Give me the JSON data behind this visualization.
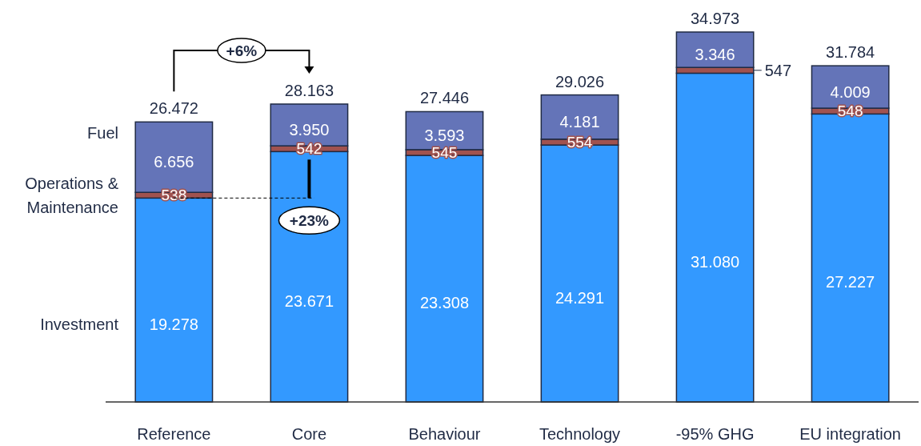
{
  "chart_data": {
    "type": "bar",
    "stacked": true,
    "categories": [
      "Reference",
      "Core",
      "Behaviour",
      "Technology",
      "-95% GHG",
      "EU integration"
    ],
    "series": [
      {
        "name": "Investment",
        "color": "#3399ff",
        "values": [
          19278,
          23671,
          23308,
          24291,
          31080,
          27227
        ],
        "value_labels": [
          "19.278",
          "23.671",
          "23.308",
          "24.291",
          "31.080",
          "27.227"
        ]
      },
      {
        "name": "Operations & Maintenance",
        "color": "#a0524f",
        "values": [
          538,
          542,
          545,
          554,
          547,
          548
        ],
        "value_labels": [
          "538",
          "542",
          "545",
          "554",
          "547",
          "548"
        ]
      },
      {
        "name": "Fuel",
        "color": "#6474b8",
        "values": [
          6656,
          3950,
          3593,
          4181,
          3346,
          4009
        ],
        "value_labels": [
          "6.656",
          "3.950",
          "3.593",
          "4.181",
          "3.346",
          "4.009"
        ]
      }
    ],
    "totals": [
      "26.472",
      "28.163",
      "27.446",
      "29.026",
      "34.973",
      "31.784"
    ],
    "annotations": [
      "+6%",
      "+23%"
    ],
    "legend": "left"
  }
}
